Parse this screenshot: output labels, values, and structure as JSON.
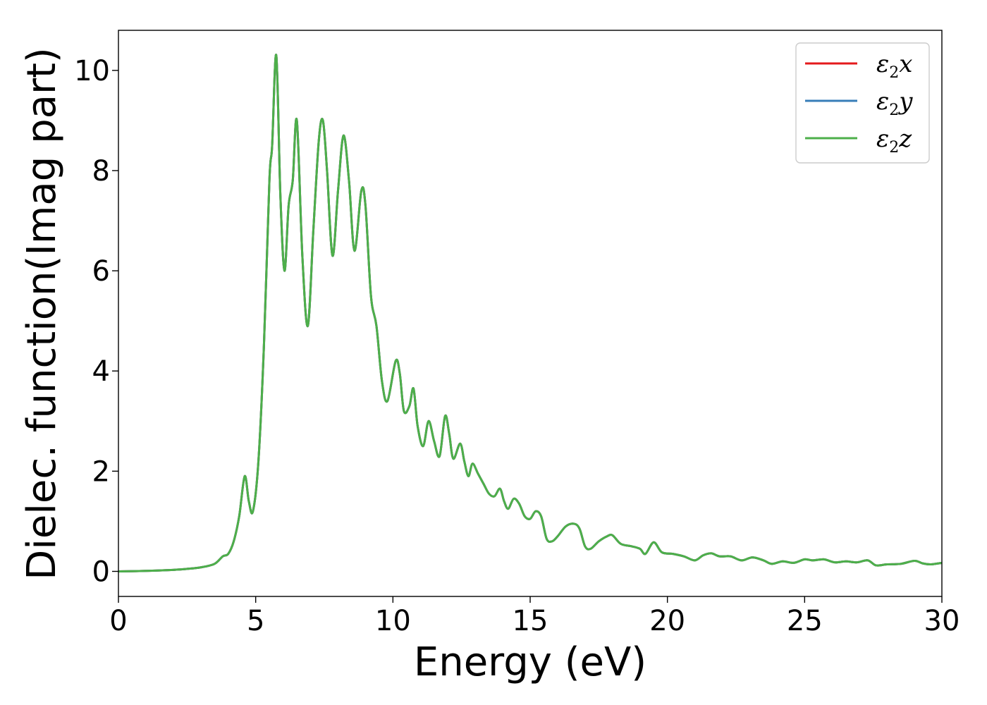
{
  "chart_data": {
    "type": "line",
    "xlabel": "Energy (eV)",
    "ylabel": "Dielec. function(Imag part)",
    "xlim": [
      0,
      30
    ],
    "ylim": [
      -0.5,
      10.8
    ],
    "xticks": [
      "0",
      "5",
      "10",
      "15",
      "20",
      "25",
      "30"
    ],
    "yticks": [
      "0",
      "2",
      "4",
      "6",
      "8",
      "10"
    ],
    "grid": false,
    "legend_position": "top-right",
    "series": [
      {
        "name": "ε2x",
        "legend_base": "ε",
        "legend_sub": "2",
        "legend_tail": "x",
        "color": "#e41a1c"
      },
      {
        "name": "ε2y",
        "legend_base": "ε",
        "legend_sub": "2",
        "legend_tail": "y",
        "color": "#377eb8"
      },
      {
        "name": "ε2z",
        "legend_base": "ε",
        "legend_sub": "2",
        "legend_tail": "z",
        "color": "#4daf4a"
      }
    ],
    "x": [
      0,
      1,
      2,
      2.5,
      3,
      3.5,
      3.8,
      4.0,
      4.2,
      4.4,
      4.6,
      4.75,
      4.9,
      5.1,
      5.3,
      5.5,
      5.6,
      5.75,
      5.9,
      6.05,
      6.2,
      6.35,
      6.5,
      6.7,
      6.9,
      7.1,
      7.3,
      7.45,
      7.6,
      7.8,
      8.0,
      8.2,
      8.4,
      8.6,
      8.85,
      9.0,
      9.2,
      9.4,
      9.6,
      9.8,
      10.1,
      10.25,
      10.4,
      10.6,
      10.75,
      10.9,
      11.1,
      11.3,
      11.5,
      11.7,
      11.9,
      12.05,
      12.2,
      12.45,
      12.6,
      12.75,
      12.9,
      13.1,
      13.3,
      13.5,
      13.7,
      13.9,
      14.05,
      14.2,
      14.4,
      14.6,
      14.8,
      15.0,
      15.2,
      15.4,
      15.6,
      15.8,
      16.0,
      16.3,
      16.6,
      16.8,
      17.0,
      17.2,
      17.5,
      17.8,
      18.0,
      18.3,
      18.7,
      19.0,
      19.2,
      19.5,
      19.8,
      20.2,
      20.6,
      21.0,
      21.3,
      21.6,
      21.9,
      22.3,
      22.7,
      23.1,
      23.5,
      23.8,
      24.2,
      24.6,
      25.0,
      25.3,
      25.7,
      26.1,
      26.5,
      26.9,
      27.3,
      27.6,
      28.0,
      28.5,
      29.0,
      29.3,
      29.6,
      30.0
    ],
    "y": [
      0.0,
      0.01,
      0.03,
      0.05,
      0.08,
      0.15,
      0.3,
      0.35,
      0.6,
      1.1,
      1.9,
      1.4,
      1.2,
      2.2,
      4.5,
      7.8,
      8.5,
      10.3,
      7.5,
      6.0,
      7.3,
      7.8,
      9.0,
      6.3,
      4.9,
      6.8,
      8.6,
      9.0,
      8.0,
      6.3,
      7.6,
      8.7,
      7.8,
      6.4,
      7.6,
      7.3,
      5.5,
      4.9,
      3.8,
      3.4,
      4.2,
      3.95,
      3.2,
      3.3,
      3.65,
      2.9,
      2.5,
      3.0,
      2.6,
      2.3,
      3.1,
      2.75,
      2.25,
      2.55,
      2.2,
      1.9,
      2.15,
      1.95,
      1.75,
      1.55,
      1.5,
      1.65,
      1.4,
      1.25,
      1.45,
      1.35,
      1.1,
      1.05,
      1.2,
      1.1,
      0.65,
      0.6,
      0.7,
      0.9,
      0.95,
      0.85,
      0.5,
      0.45,
      0.6,
      0.7,
      0.72,
      0.55,
      0.5,
      0.45,
      0.35,
      0.58,
      0.38,
      0.35,
      0.3,
      0.22,
      0.32,
      0.36,
      0.3,
      0.3,
      0.22,
      0.28,
      0.22,
      0.15,
      0.2,
      0.17,
      0.24,
      0.22,
      0.24,
      0.18,
      0.2,
      0.18,
      0.22,
      0.12,
      0.14,
      0.15,
      0.21,
      0.16,
      0.14,
      0.17
    ]
  }
}
